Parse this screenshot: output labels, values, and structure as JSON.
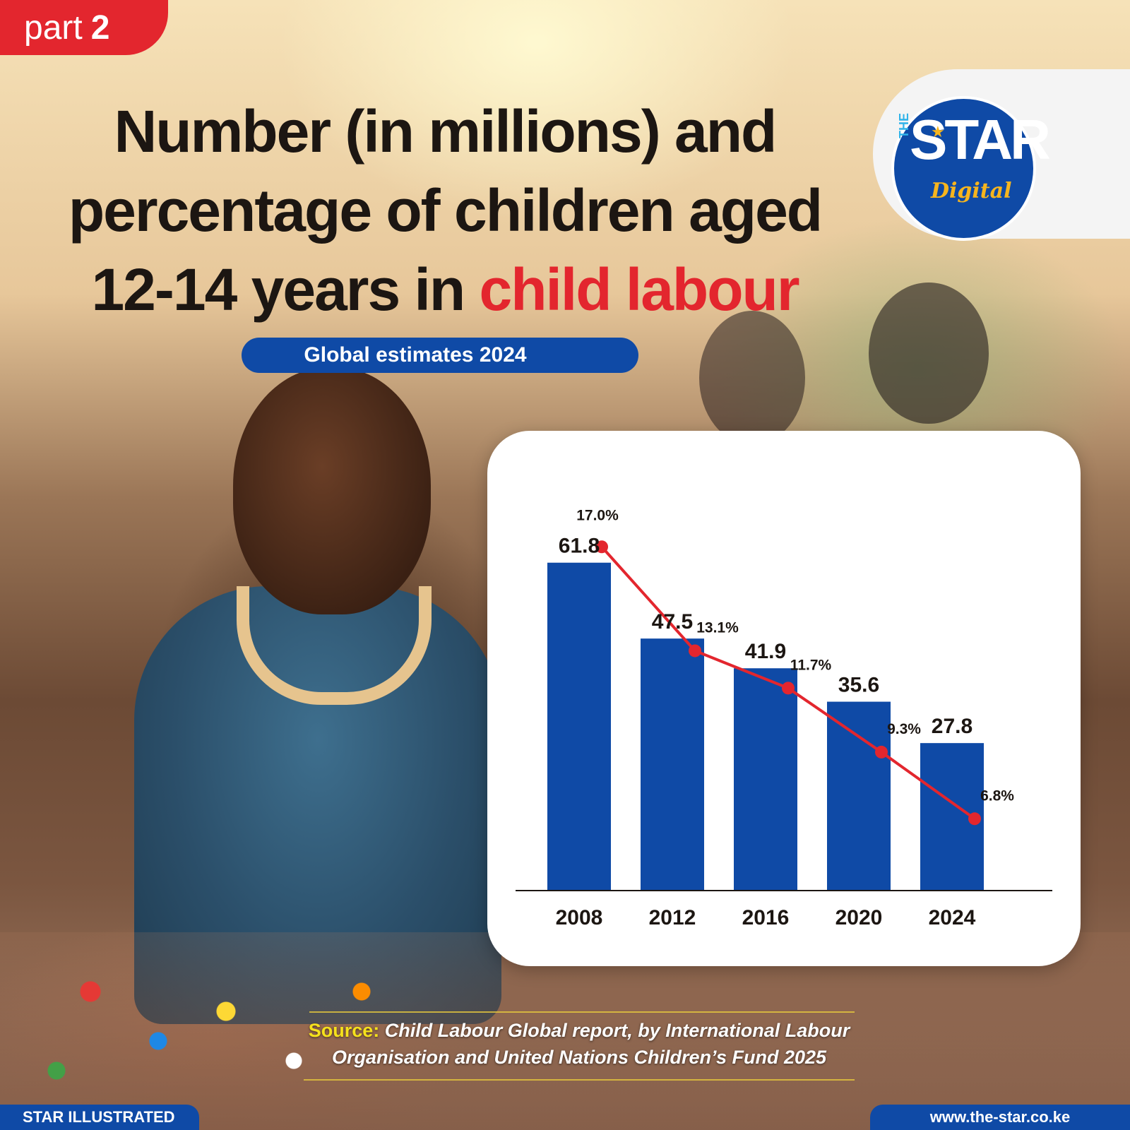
{
  "badge": {
    "word": "part",
    "number": "2"
  },
  "title": {
    "line1": "Number (in millions) and",
    "line2": "percentage of children aged",
    "line3_prefix": "12-14 years in ",
    "line3_highlight": "child labour"
  },
  "subtitle": "Global estimates 2024",
  "logo": {
    "the": "THE",
    "star": "STAR",
    "digital": "Digital",
    "colors": {
      "blue": "#0f4aa6",
      "gold": "#f6b51e",
      "cyan": "#2fb3e9"
    }
  },
  "chart_data": {
    "type": "bar",
    "categories": [
      "2008",
      "2012",
      "2016",
      "2020",
      "2024"
    ],
    "series": [
      {
        "values": [
          61.8,
          47.5,
          41.9,
          35.6,
          27.8
        ],
        "display": [
          "61.8",
          "47.5",
          "41.9",
          "35.6",
          "27.8"
        ],
        "color": "#0f4aa6",
        "kind": "bar"
      },
      {
        "values": [
          17.0,
          13.1,
          11.7,
          9.3,
          6.8
        ],
        "display": [
          "17.0%",
          "13.1%",
          "11.7%",
          "9.3%",
          "6.8%"
        ],
        "color": "#e3262e",
        "kind": "line"
      }
    ],
    "ylim_bar": [
      0,
      80
    ],
    "ylim_line": [
      0,
      20
    ],
    "grid": false
  },
  "source": {
    "label": "Source:",
    "text": "Child Labour Global report, by International Labour Organisation and United Nations Children’s Fund 2025"
  },
  "footer": {
    "left": "STAR ILLUSTRATED",
    "right": "www.the-star.co.ke"
  }
}
